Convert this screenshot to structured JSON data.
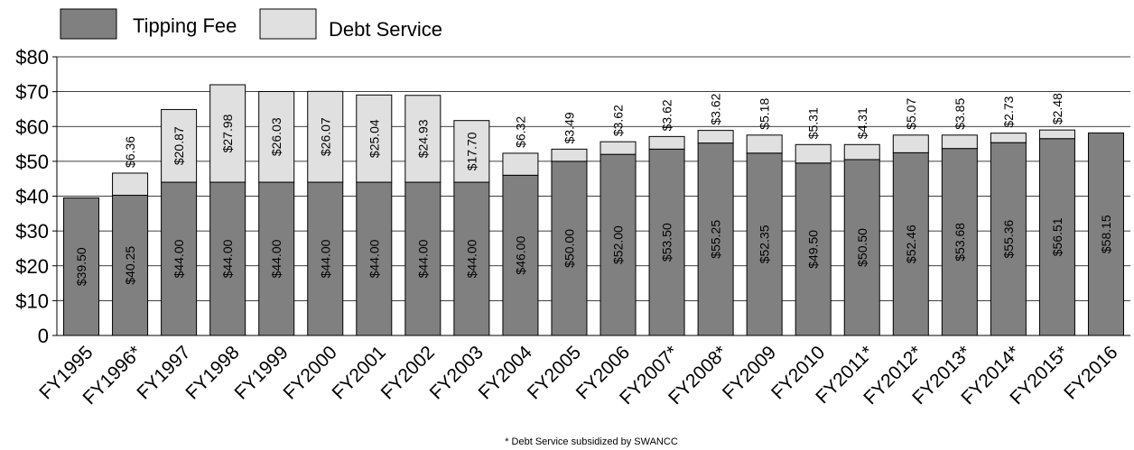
{
  "chart_data": {
    "type": "bar",
    "stacked": true,
    "categories": [
      "FY1995",
      "FY1996*",
      "FY1997",
      "FY1998",
      "FY1999",
      "FY2000",
      "FY2001",
      "FY2002",
      "FY2003",
      "FY2004",
      "FY2005",
      "FY2006",
      "FY2007*",
      "FY2008*",
      "FY2009",
      "FY2010",
      "FY2011*",
      "FY2012*",
      "FY2013*",
      "FY2014*",
      "FY2015*",
      "FY2016"
    ],
    "series": [
      {
        "name": "Tipping Fee",
        "color": "#808080",
        "values": [
          39.5,
          40.25,
          44.0,
          44.0,
          44.0,
          44.0,
          44.0,
          44.0,
          44.0,
          46.0,
          50.0,
          52.0,
          53.5,
          55.25,
          52.35,
          49.5,
          50.5,
          52.46,
          53.68,
          55.36,
          56.51,
          58.15
        ],
        "labels": [
          "$39.50",
          "$40.25",
          "$44.00",
          "$44.00",
          "$44.00",
          "$44.00",
          "$44.00",
          "$44.00",
          "$44.00",
          "$46.00",
          "$50.00",
          "$52.00",
          "$53.50",
          "$55.25",
          "$52.35",
          "$49.50",
          "$50.50",
          "$52.46",
          "$53.68",
          "$55.36",
          "$56.51",
          "$58.15"
        ]
      },
      {
        "name": "Debt Service",
        "color": "#e0e0e0",
        "values": [
          null,
          6.36,
          20.87,
          27.98,
          26.03,
          26.07,
          25.04,
          24.93,
          17.7,
          6.32,
          3.49,
          3.62,
          3.62,
          3.62,
          5.18,
          5.31,
          4.31,
          5.07,
          3.85,
          2.73,
          2.48,
          null
        ],
        "labels": [
          null,
          "$6.36",
          "$20.87",
          "$27.98",
          "$26.03",
          "$26.07",
          "$25.04",
          "$24.93",
          "$17.70",
          "$6.32",
          "$3.49",
          "$3.62",
          "$3.62",
          "$3.62",
          "$5.18",
          "$5.31",
          "$4.31",
          "$5.07",
          "$3.85",
          "$2.73",
          "$2.48",
          null
        ]
      }
    ],
    "y_ticks": [
      "0",
      "$10",
      "$20",
      "$30",
      "$40",
      "$50",
      "$60",
      "$70",
      "$80"
    ],
    "ylim": [
      0,
      80
    ],
    "grid": true,
    "legend": "top-left",
    "footnote": "* Debt Service subsidized by SWANCC"
  }
}
